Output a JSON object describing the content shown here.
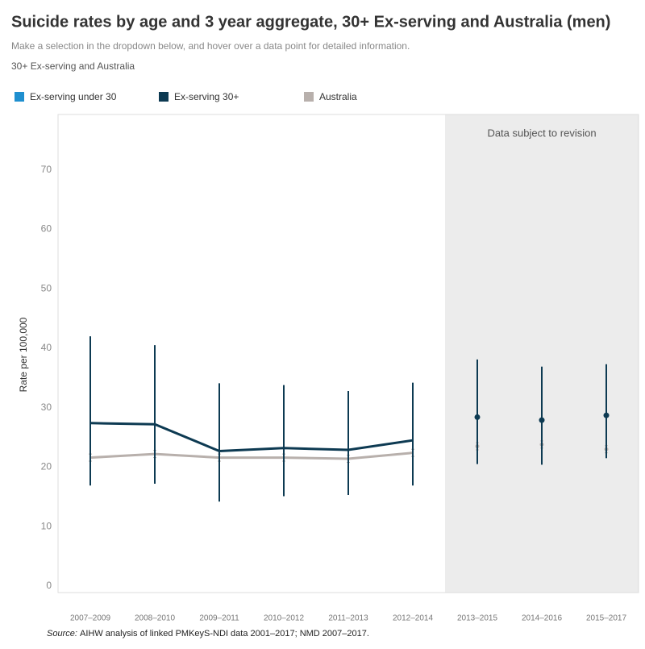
{
  "chart_data": {
    "type": "line",
    "title": "Suicide rates by age and 3 year aggregate, 30+ Ex-serving and Australia (men)",
    "subtitle": "Make a selection in the dropdown below, and hover over a data point for detailed information.",
    "selection": "30+ Ex-serving and Australia",
    "y_label": "Rate per 100,000",
    "source_label": "Source:",
    "source": "AIHW analysis of linked PMKeyS-NDI data 2001–2017; NMD 2007–2017.",
    "annotation": {
      "text": "Data subject to revision",
      "from_category": "2013–2015"
    },
    "legend": [
      {
        "name": "Ex-serving under 30",
        "color": "#1f8fcf"
      },
      {
        "name": "Ex-serving 30+",
        "color": "#0d3a52"
      },
      {
        "name": "Australia",
        "color": "#b8b0ac"
      }
    ],
    "categories": [
      "2007–2009",
      "2008–2010",
      "2009–2011",
      "2010–2012",
      "2011–2013",
      "2012–2014",
      "2013–2015",
      "2014–2016",
      "2015–2017"
    ],
    "series": [
      {
        "name": "Ex-serving 30+",
        "color": "#0d3a52",
        "values": [
          27.4,
          27.2,
          22.7,
          23.2,
          22.9,
          24.5,
          28.4,
          27.9,
          28.7
        ],
        "lower": [
          16.9,
          17.2,
          14.2,
          15.1,
          15.3,
          16.9,
          20.5,
          20.4,
          21.5
        ],
        "upper": [
          42.0,
          40.5,
          34.1,
          33.8,
          32.8,
          34.2,
          38.1,
          36.9,
          37.3
        ]
      },
      {
        "name": "Australia",
        "color": "#b8b0ac",
        "values": [
          21.6,
          22.2,
          21.6,
          21.6,
          21.4,
          22.4,
          23.5,
          23.8,
          23.0
        ],
        "lower": [
          21.0,
          21.6,
          21.0,
          21.0,
          20.8,
          21.8,
          22.9,
          23.2,
          22.4
        ],
        "upper": [
          22.2,
          22.8,
          22.2,
          22.2,
          22.0,
          23.0,
          24.1,
          24.4,
          23.6
        ]
      }
    ],
    "ylim": [
      -1.1,
      79.3
    ],
    "yticks": [
      0,
      10,
      20,
      30,
      40,
      50,
      60,
      70
    ],
    "grid": false
  }
}
